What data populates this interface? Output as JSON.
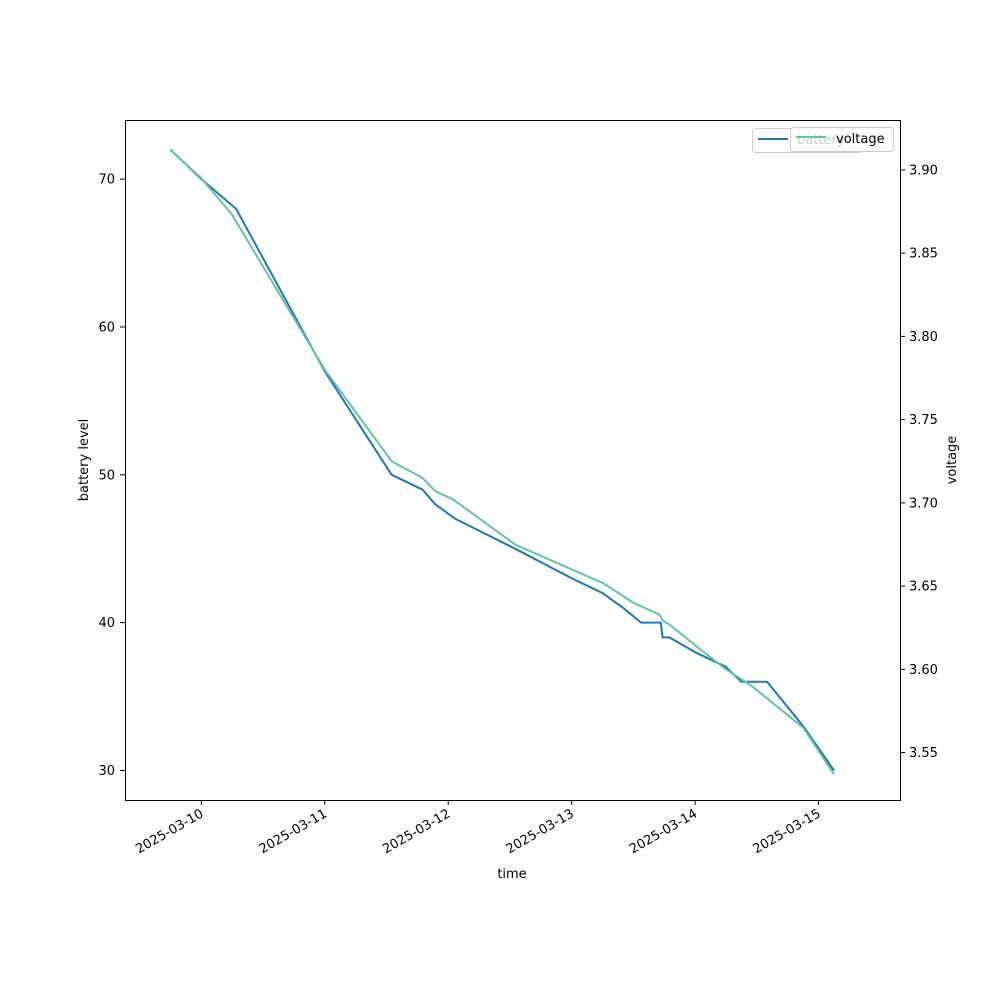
{
  "chart_data": {
    "type": "line",
    "xlabel": "time",
    "ylabel": "battery level",
    "y2label": "voltage",
    "x_ticks": [
      "2025-03-10",
      "2025-03-11",
      "2025-03-12",
      "2025-03-13",
      "2025-03-14",
      "2025-03-15"
    ],
    "xlim": [
      "2025-03-09T09:10",
      "2025-03-15T15:50"
    ],
    "ylim": [
      28,
      74
    ],
    "y_ticks": [
      30,
      40,
      50,
      60,
      70
    ],
    "y2lim": [
      3.5215,
      3.93
    ],
    "y2_ticks": [
      "3.55",
      "3.60",
      "3.65",
      "3.70",
      "3.75",
      "3.80",
      "3.85",
      "3.90"
    ],
    "grid": false,
    "legend_placement": "top-right",
    "series": [
      {
        "name": "battery",
        "axis": "left",
        "color": "#1f77b4",
        "points": [
          [
            "2025-03-09T18:00",
            72
          ],
          [
            "2025-03-10T00:00",
            70
          ],
          [
            "2025-03-10T06:45",
            68
          ],
          [
            "2025-03-11T00:00",
            57
          ],
          [
            "2025-03-11T13:00",
            50
          ],
          [
            "2025-03-11T16:00",
            49.5
          ],
          [
            "2025-03-11T19:00",
            49
          ],
          [
            "2025-03-11T21:30",
            48
          ],
          [
            "2025-03-12T01:30",
            47
          ],
          [
            "2025-03-12T13:00",
            45
          ],
          [
            "2025-03-13T00:00",
            43
          ],
          [
            "2025-03-13T06:00",
            42
          ],
          [
            "2025-03-13T10:00",
            41
          ],
          [
            "2025-03-13T13:30",
            40
          ],
          [
            "2025-03-13T17:20",
            40
          ],
          [
            "2025-03-13T17:40",
            39
          ],
          [
            "2025-03-13T19:00",
            39
          ],
          [
            "2025-03-14T00:00",
            38
          ],
          [
            "2025-03-14T06:00",
            37
          ],
          [
            "2025-03-14T09:00",
            36
          ],
          [
            "2025-03-14T14:00",
            36
          ],
          [
            "2025-03-14T21:00",
            33
          ],
          [
            "2025-03-15T03:00",
            30
          ]
        ]
      },
      {
        "name": "voltage",
        "axis": "right",
        "color": "#66c2a5",
        "points": [
          [
            "2025-03-09T18:00",
            3.912
          ],
          [
            "2025-03-10T00:00",
            3.895
          ],
          [
            "2025-03-10T06:00",
            3.873
          ],
          [
            "2025-03-11T00:00",
            3.78
          ],
          [
            "2025-03-11T13:00",
            3.725
          ],
          [
            "2025-03-11T19:00",
            3.715
          ],
          [
            "2025-03-11T21:30",
            3.707
          ],
          [
            "2025-03-12T01:00",
            3.702
          ],
          [
            "2025-03-12T13:00",
            3.675
          ],
          [
            "2025-03-13T00:00",
            3.66
          ],
          [
            "2025-03-13T06:00",
            3.652
          ],
          [
            "2025-03-13T12:00",
            3.64
          ],
          [
            "2025-03-13T17:00",
            3.633
          ],
          [
            "2025-03-13T17:50",
            3.629
          ],
          [
            "2025-03-13T19:00",
            3.627
          ],
          [
            "2025-03-14T01:00",
            3.612
          ],
          [
            "2025-03-14T06:00",
            3.6
          ],
          [
            "2025-03-14T11:00",
            3.59
          ],
          [
            "2025-03-14T21:00",
            3.565
          ],
          [
            "2025-03-15T03:00",
            3.537
          ]
        ]
      }
    ]
  }
}
